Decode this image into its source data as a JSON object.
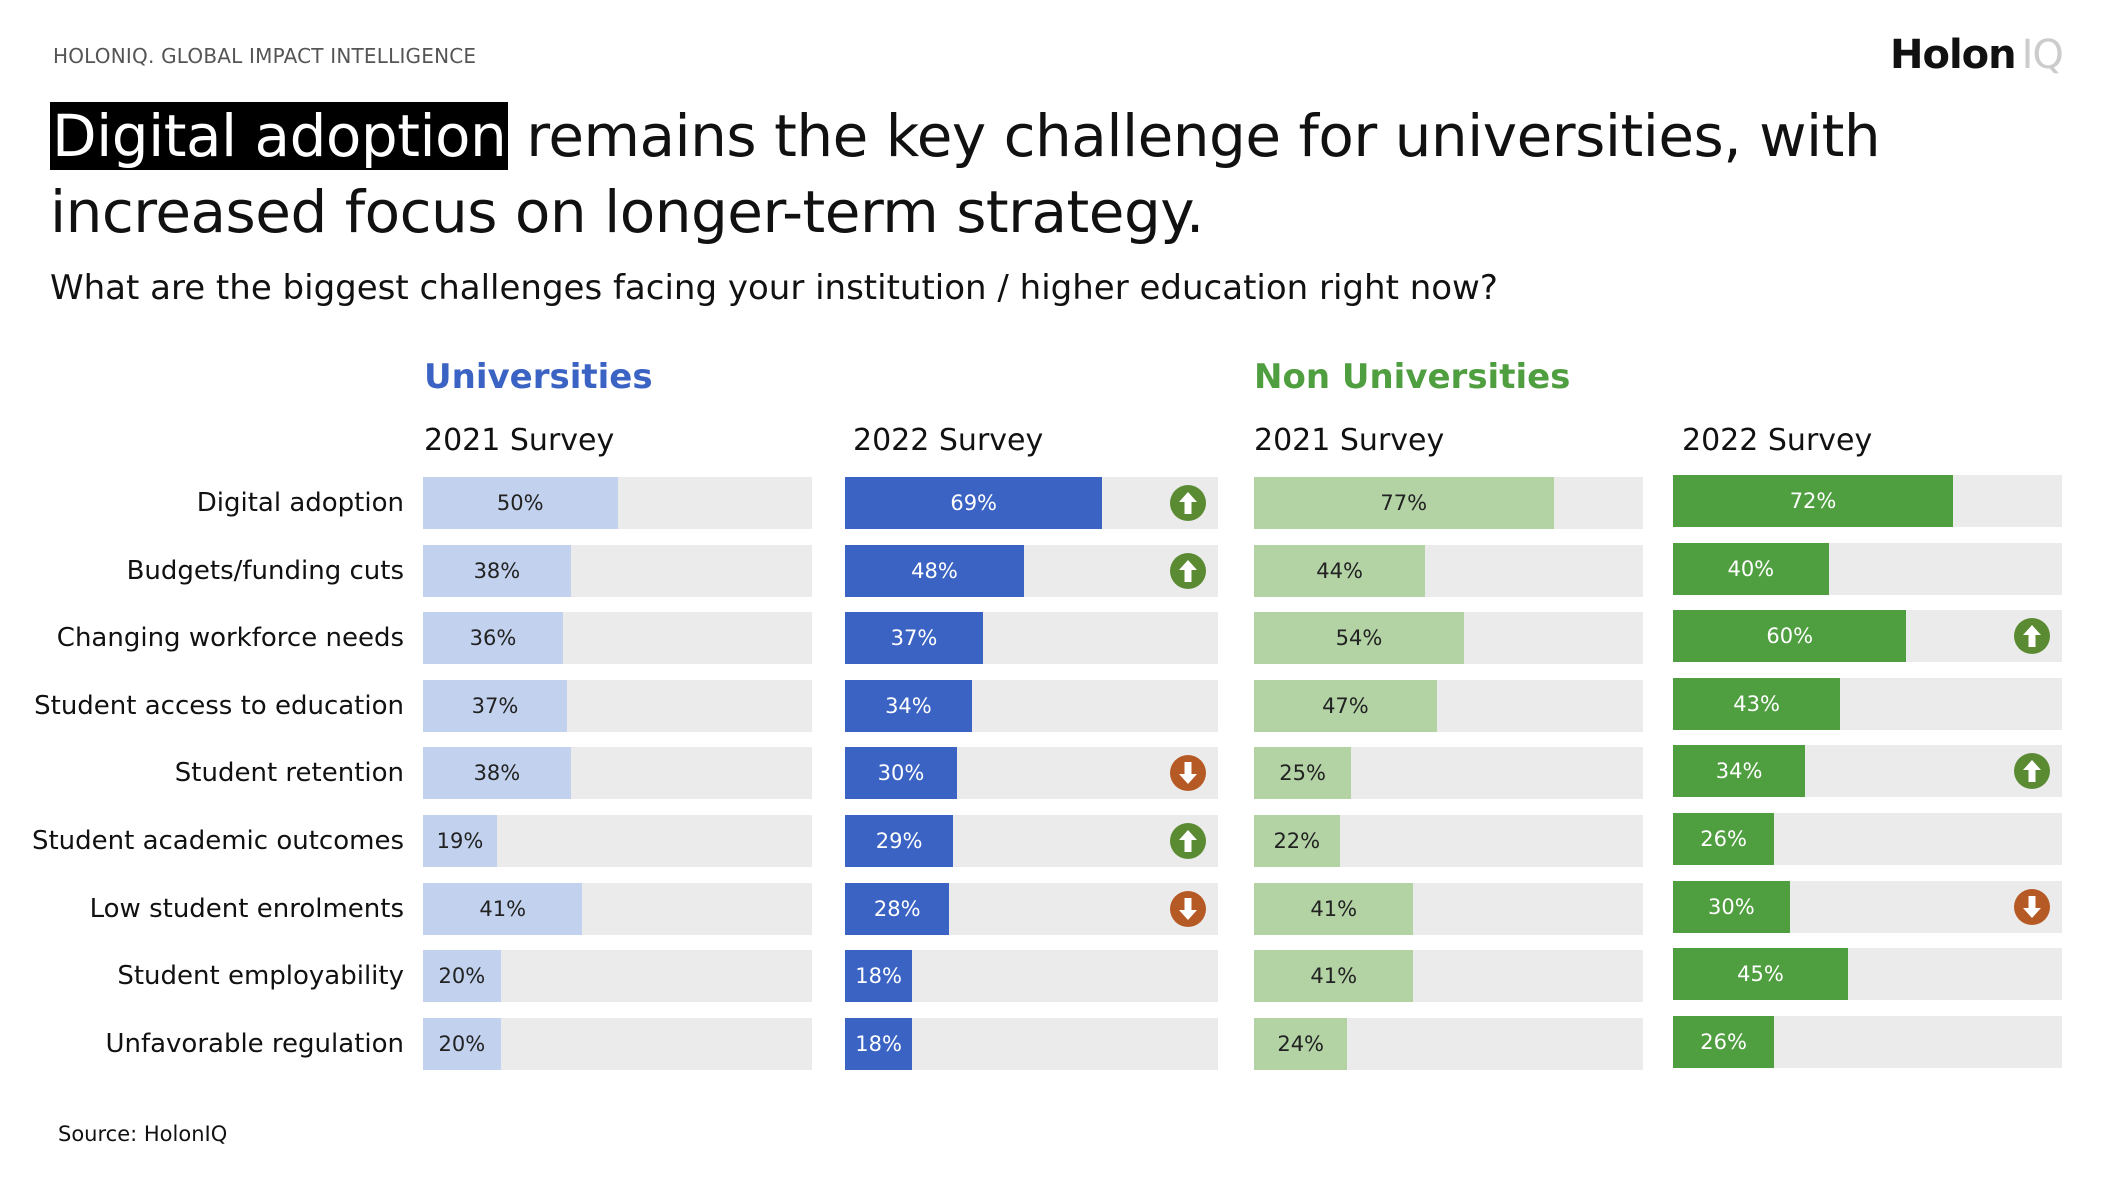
{
  "header": {
    "kicker": "HOLONIQ. GLOBAL IMPACT INTELLIGENCE",
    "logo_main": "Holon",
    "logo_suffix": "IQ"
  },
  "title": {
    "highlight": "Digital adoption",
    "rest": " remains the key challenge for universities, with increased focus on longer-term strategy."
  },
  "subtitle": "What are the biggest challenges facing your institution / higher education right now?",
  "source": "Source: HolonIQ",
  "colors": {
    "track": "#ebebeb",
    "up": "#5a8a32",
    "down": "#b55a24",
    "universities": "#3a63c4",
    "non_universities": "#4f9e3f"
  },
  "chart_data": {
    "type": "bar",
    "orientation": "horizontal",
    "unit": "%",
    "xlim": [
      0,
      100
    ],
    "categories": [
      "Digital adoption",
      "Budgets/funding cuts",
      "Changing workforce needs",
      "Student access to education",
      "Student retention",
      "Student academic outcomes",
      "Low student enrolments",
      "Student employability",
      "Unfavorable regulation"
    ],
    "groups": [
      {
        "name": "Universities",
        "color": "#3a63c4",
        "panels": [
          {
            "name": "2021 Survey",
            "color": "#c2d2ee",
            "text_color": "#222222",
            "values": [
              50,
              38,
              36,
              37,
              38,
              19,
              41,
              20,
              20
            ],
            "changes": [
              null,
              null,
              null,
              null,
              null,
              null,
              null,
              null,
              null
            ]
          },
          {
            "name": "2022 Survey",
            "color": "#3a63c4",
            "text_color": "#ffffff",
            "values": [
              69,
              48,
              37,
              34,
              30,
              29,
              28,
              18,
              18
            ],
            "changes": [
              "up",
              "up",
              null,
              null,
              "down",
              "up",
              "down",
              null,
              null
            ]
          }
        ]
      },
      {
        "name": "Non Universities",
        "color": "#4f9e3f",
        "panels": [
          {
            "name": "2021 Survey",
            "color": "#b3d3a5",
            "text_color": "#222222",
            "values": [
              77,
              44,
              54,
              47,
              25,
              22,
              41,
              41,
              24
            ],
            "changes": [
              null,
              null,
              null,
              null,
              null,
              null,
              null,
              null,
              null
            ]
          },
          {
            "name": "2022 Survey",
            "color": "#4f9e3f",
            "text_color": "#ffffff",
            "values": [
              72,
              40,
              60,
              43,
              34,
              26,
              30,
              45,
              26
            ],
            "changes": [
              null,
              null,
              "up",
              null,
              "up",
              null,
              "down",
              null,
              null
            ]
          }
        ]
      }
    ]
  }
}
